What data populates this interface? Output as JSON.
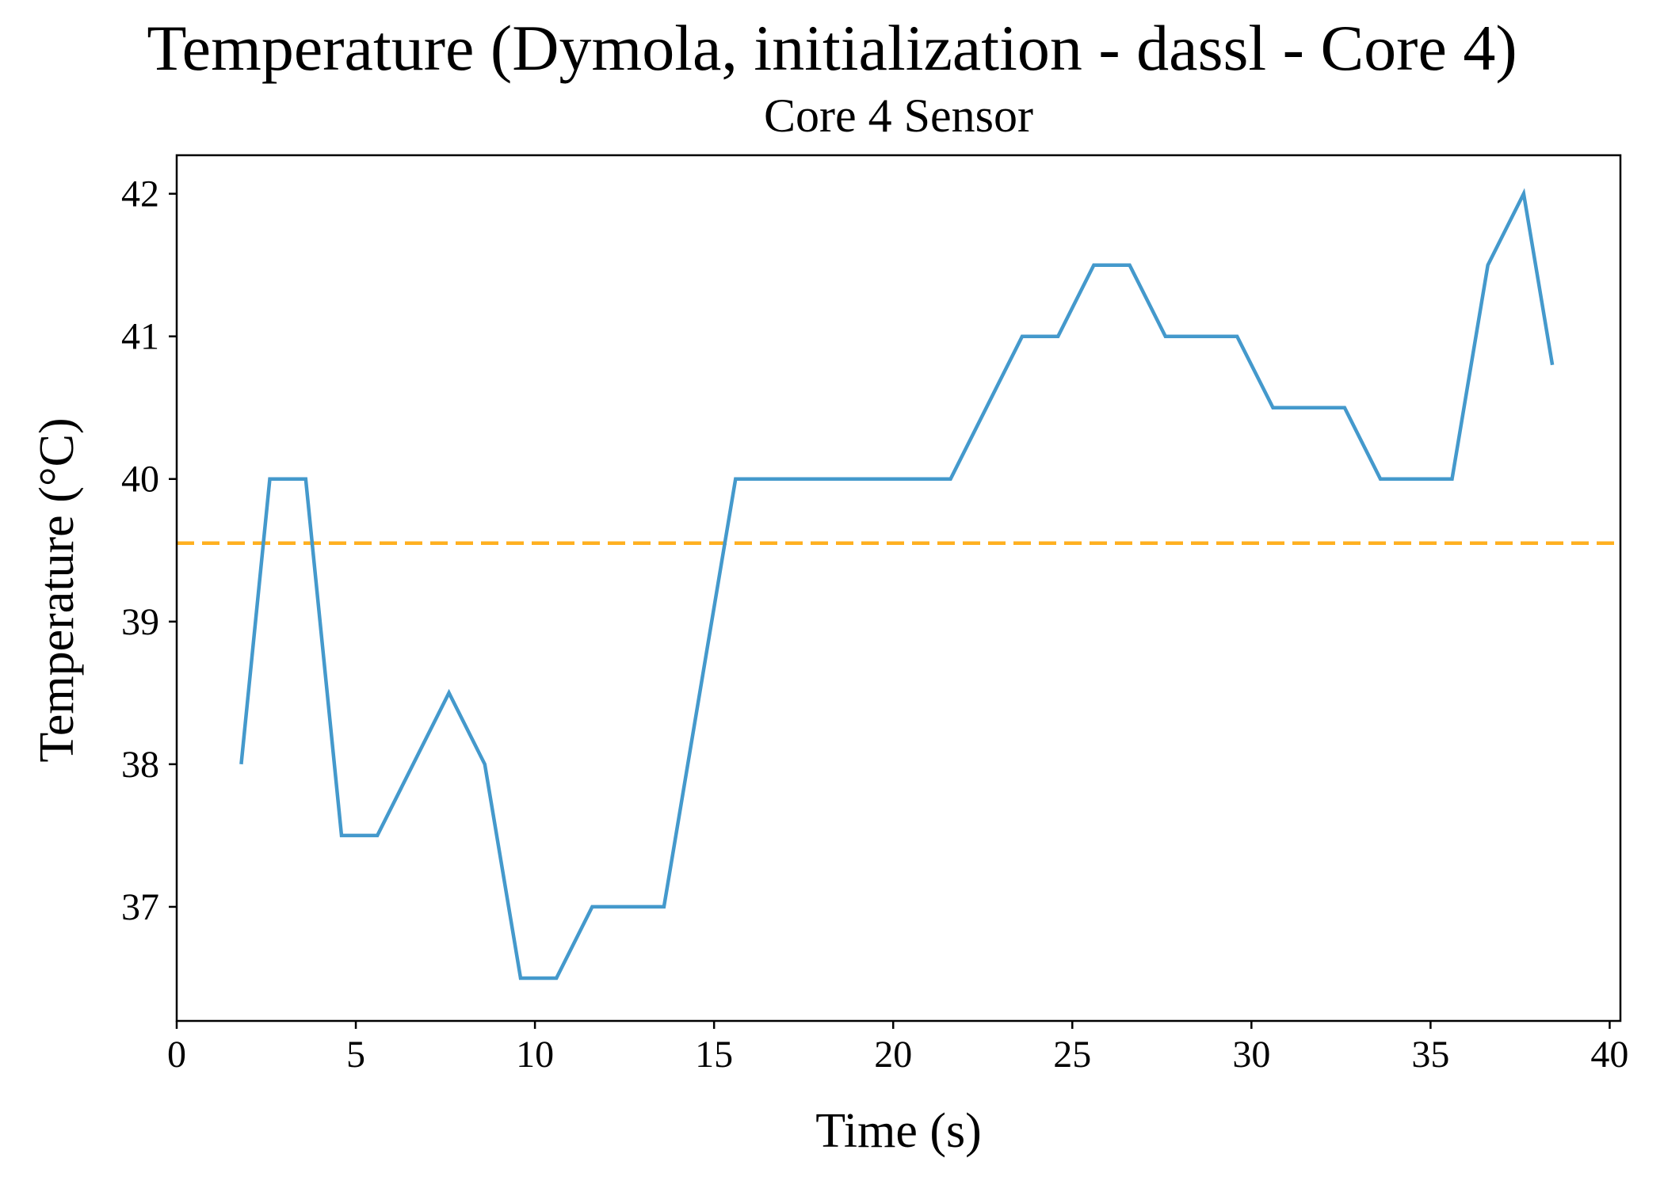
{
  "chart_data": {
    "type": "line",
    "suptitle": "Temperature (Dymola, initialization - dassl - Core 4)",
    "title": "Core 4 Sensor",
    "xlabel": "Time (s)",
    "ylabel": "Temperature (°C)",
    "xlim": [
      0,
      40.3
    ],
    "ylim": [
      36.2,
      42.27
    ],
    "xticks": [
      0,
      5,
      10,
      15,
      20,
      25,
      30,
      35,
      40
    ],
    "yticks": [
      37,
      38,
      39,
      40,
      41,
      42
    ],
    "grid": false,
    "series": [
      {
        "color": "#4499cc",
        "x": [
          1.8,
          2.6,
          3.6,
          4.6,
          5.6,
          7.6,
          8.6,
          9.6,
          10.6,
          11.6,
          13.6,
          15.6,
          21.6,
          23.6,
          24.6,
          25.6,
          26.6,
          27.6,
          29.6,
          30.6,
          32.6,
          33.6,
          35.6,
          36.6,
          37.6,
          38.4
        ],
        "y": [
          38.0,
          40.0,
          40.0,
          37.5,
          37.5,
          38.5,
          38.0,
          36.5,
          36.5,
          37.0,
          37.0,
          40.0,
          40.0,
          41.0,
          41.0,
          41.5,
          41.5,
          41.0,
          41.0,
          40.5,
          40.5,
          40.0,
          40.0,
          41.5,
          42.0,
          40.8
        ]
      }
    ],
    "reference_line": {
      "y": 39.55,
      "color": "#ffb020",
      "style": "dashed"
    }
  }
}
